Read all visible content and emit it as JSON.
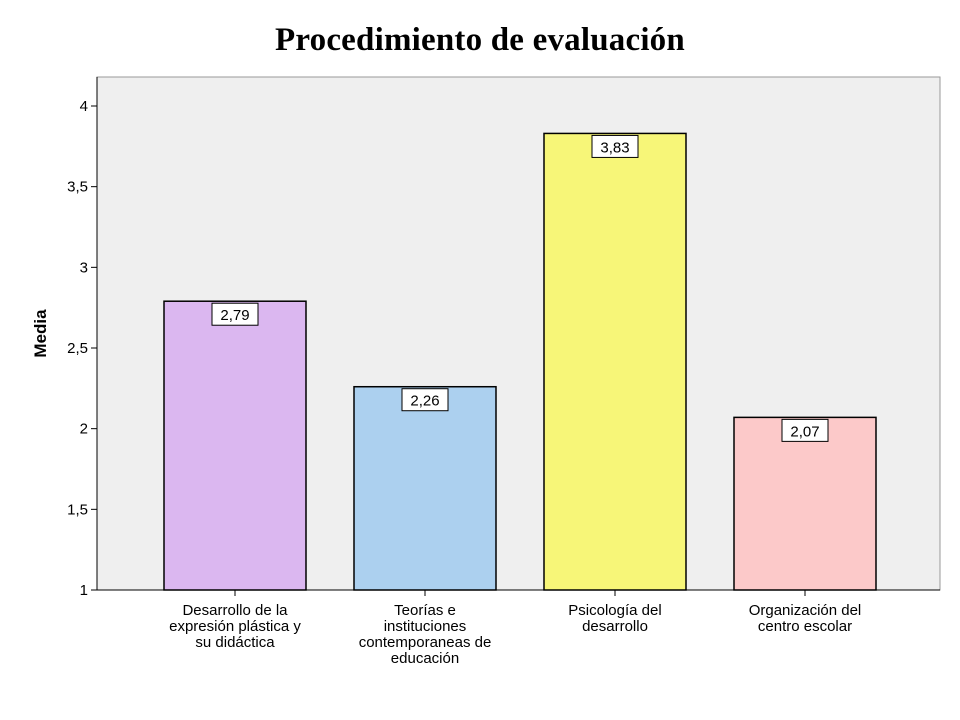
{
  "chart_data": {
    "type": "bar",
    "title": "Procedimiento de evaluación",
    "xlabel": "",
    "ylabel": "Media",
    "ylim": [
      1,
      4
    ],
    "yticks": [
      "1",
      "1,5",
      "2",
      "2,5",
      "3",
      "3,5",
      "4"
    ],
    "ytick_values": [
      1,
      1.5,
      2,
      2.5,
      3,
      3.5,
      4
    ],
    "grid": false,
    "categories": [
      [
        "Desarrollo de la",
        "expresión plástica y",
        "su didáctica"
      ],
      [
        "Teorías e",
        "instituciones",
        "contemporaneas de",
        "educación"
      ],
      [
        "Psicología del",
        "desarrollo"
      ],
      [
        "Organización del",
        "centro escolar"
      ]
    ],
    "values": [
      2.79,
      2.26,
      3.83,
      2.07
    ],
    "data_labels": [
      "2,79",
      "2,26",
      "3,83",
      "2,07"
    ],
    "colors": [
      "#dbb7f0",
      "#acd0ef",
      "#f7f678",
      "#fcc9c9"
    ],
    "plot_background": "#efefef"
  }
}
